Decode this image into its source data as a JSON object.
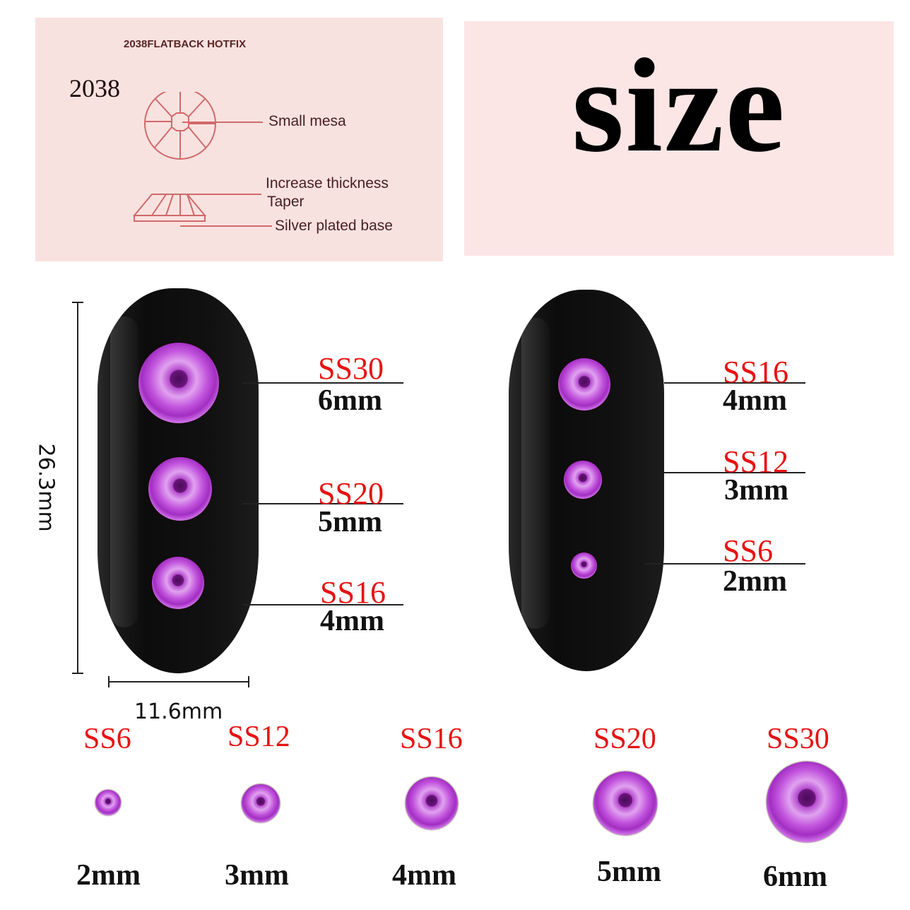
{
  "diagram": {
    "heading": "2038FLATBACK HOTFIX",
    "model": "2038",
    "labels": [
      "Small mesa",
      "Increase thickness",
      "Taper",
      "Silver plated base"
    ]
  },
  "title": "size",
  "dimensions": {
    "height": "26.3mm",
    "width": "11.6mm"
  },
  "nail_left": [
    {
      "code": "SS30",
      "size": "6mm"
    },
    {
      "code": "SS20",
      "size": "5mm"
    },
    {
      "code": "SS16",
      "size": "4mm"
    }
  ],
  "nail_right": [
    {
      "code": "SS16",
      "size": "4mm"
    },
    {
      "code": "SS12",
      "size": "3mm"
    },
    {
      "code": "SS6",
      "size": "2mm"
    }
  ],
  "bottom_row": [
    {
      "code": "SS6",
      "size": "2mm"
    },
    {
      "code": "SS12",
      "size": "3mm"
    },
    {
      "code": "SS16",
      "size": "4mm"
    },
    {
      "code": "SS20",
      "size": "5mm"
    },
    {
      "code": "SS30",
      "size": "6mm"
    }
  ],
  "colors": {
    "code_red": "#e81212",
    "gem_purple": "#c153dc",
    "panel_pink": "#f8e2e0"
  }
}
